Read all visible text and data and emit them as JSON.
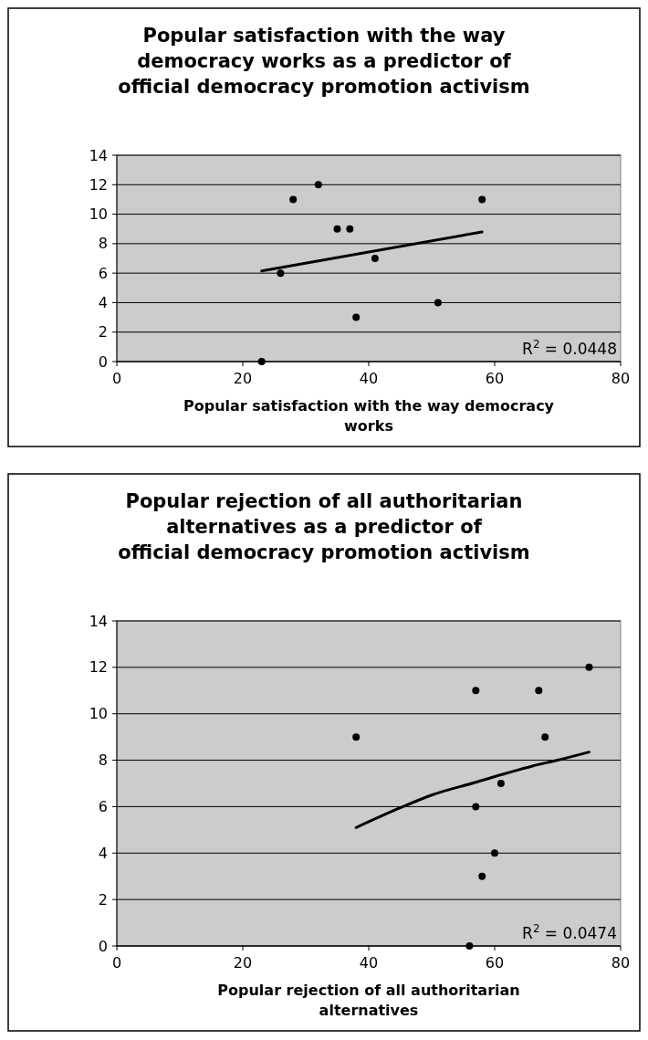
{
  "chart_data": [
    {
      "type": "scatter",
      "title": "Popular satisfaction with the way democracy works as a predictor of official democracy promotion activism",
      "xlabel": "Popular satisfaction with the way democracy works",
      "xlim": [
        0,
        80
      ],
      "xticks": [
        0,
        20,
        40,
        60,
        80
      ],
      "ylim": [
        0,
        14
      ],
      "yticks": [
        0,
        2,
        4,
        6,
        8,
        10,
        12,
        14
      ],
      "grid": "y",
      "marker": "circle",
      "annotations": [
        "R$^{2}$ = 0.0448"
      ],
      "series": [
        {
          "color": "#000000",
          "x": [
            23,
            26,
            28,
            32,
            35,
            37,
            38,
            41,
            51,
            58
          ],
          "values": [
            0,
            6,
            11,
            12,
            9,
            9,
            3,
            7,
            4,
            11
          ]
        },
        {
          "type": "line",
          "color": "#000000",
          "marker": "none",
          "x": [
            23,
            58
          ],
          "values": [
            6.15,
            8.8
          ]
        }
      ]
    },
    {
      "type": "scatter",
      "title": "Popular rejection of all authoritarian alternatives as a predictor of official democracy promotion activism",
      "xlabel": "Popular rejection of all authoritarian alternatives",
      "xlim": [
        0,
        80
      ],
      "xticks": [
        0,
        20,
        40,
        60,
        80
      ],
      "ylim": [
        0,
        14
      ],
      "yticks": [
        0,
        2,
        4,
        6,
        8,
        10,
        12,
        14
      ],
      "grid": "y",
      "marker": "circle",
      "annotations": [
        "R$^{2}$ = 0.0474"
      ],
      "series": [
        {
          "color": "#000000",
          "x": [
            38,
            56,
            57,
            57,
            58,
            60,
            61,
            67,
            68,
            75
          ],
          "values": [
            9,
            0,
            11,
            6,
            3,
            4,
            7,
            11,
            9,
            12
          ]
        },
        {
          "type": "line",
          "color": "#000000",
          "marker": "none",
          "x": [
            38,
            45,
            50,
            57,
            62,
            66,
            70,
            75
          ],
          "values": [
            5.1,
            5.95,
            6.5,
            7.05,
            7.45,
            7.75,
            8.0,
            8.35
          ]
        }
      ]
    }
  ]
}
